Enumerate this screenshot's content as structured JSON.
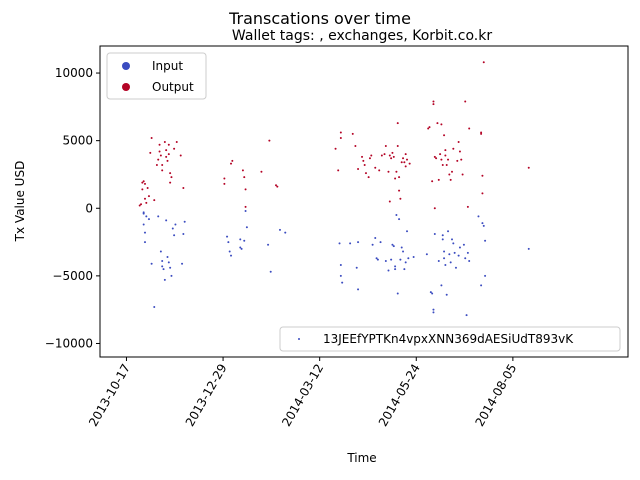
{
  "chart_data": {
    "type": "scatter",
    "title": "Transcations over time",
    "subtitle": "Wallet tags: , exchanges, Korbit.co.kr",
    "xlabel": "Time",
    "ylabel": "Tx Value USD",
    "xlim": [
      "2013-09-27",
      "2014-10-31"
    ],
    "ylim": [
      -11000,
      12000
    ],
    "x_ticks": [
      "2013-10-17",
      "2013-12-29",
      "2014-03-12",
      "2014-05-24",
      "2014-08-05"
    ],
    "y_ticks": [
      -10000,
      -5000,
      0,
      5000,
      10000
    ],
    "grid": false,
    "legend_top": {
      "placement": "upper-left",
      "entries": [
        "Input",
        "Output"
      ]
    },
    "legend_bottom": {
      "placement": "lower-right",
      "entries": [
        "13JEEfYPTKn4vpxXNN369dAESiUdT893vK"
      ]
    },
    "colors": {
      "input": "#3b4cc0",
      "output": "#b40426"
    },
    "series": [
      {
        "name": "Input",
        "points": [
          [
            "2013-10-30",
            -400
          ],
          [
            "2013-10-30",
            -1200
          ],
          [
            "2013-10-31",
            -1800
          ],
          [
            "2013-10-31",
            -2500
          ],
          [
            "2013-10-30",
            -300
          ],
          [
            "2013-11-01",
            -600
          ],
          [
            "2013-11-03",
            -800
          ],
          [
            "2013-11-05",
            -4100
          ],
          [
            "2013-11-07",
            -7300
          ],
          [
            "2013-11-10",
            -600
          ],
          [
            "2013-11-12",
            -3200
          ],
          [
            "2013-11-13",
            -3900
          ],
          [
            "2013-11-13",
            -4300
          ],
          [
            "2013-11-14",
            -4500
          ],
          [
            "2013-11-15",
            -5300
          ],
          [
            "2013-11-16",
            -900
          ],
          [
            "2013-11-17",
            -3600
          ],
          [
            "2013-11-18",
            -4000
          ],
          [
            "2013-11-19",
            -4400
          ],
          [
            "2013-11-20",
            -5000
          ],
          [
            "2013-11-21",
            -1500
          ],
          [
            "2013-11-22",
            -2000
          ],
          [
            "2013-11-23",
            -1200
          ],
          [
            "2013-11-28",
            -4100
          ],
          [
            "2013-11-29",
            -1900
          ],
          [
            "2013-11-30",
            -1000
          ],
          [
            "2014-01-01",
            -2100
          ],
          [
            "2014-01-02",
            -2500
          ],
          [
            "2014-01-03",
            -3200
          ],
          [
            "2014-01-04",
            -3500
          ],
          [
            "2014-01-11",
            -2300
          ],
          [
            "2014-01-11",
            -2900
          ],
          [
            "2014-01-12",
            -3000
          ],
          [
            "2014-01-14",
            -2400
          ],
          [
            "2014-01-15",
            -200
          ],
          [
            "2014-01-16",
            -1400
          ],
          [
            "2014-02-01",
            -2700
          ],
          [
            "2014-02-03",
            -4700
          ],
          [
            "2014-02-10",
            -1600
          ],
          [
            "2014-02-14",
            -1800
          ],
          [
            "2014-03-27",
            -2600
          ],
          [
            "2014-03-28",
            -4200
          ],
          [
            "2014-03-28",
            -5000
          ],
          [
            "2014-03-29",
            -5500
          ],
          [
            "2014-04-04",
            -2600
          ],
          [
            "2014-04-09",
            -4400
          ],
          [
            "2014-04-10",
            -6000
          ],
          [
            "2014-04-10",
            -2500
          ],
          [
            "2014-04-21",
            -2700
          ],
          [
            "2014-04-23",
            -2200
          ],
          [
            "2014-04-24",
            -3700
          ],
          [
            "2014-04-25",
            -3800
          ],
          [
            "2014-04-27",
            -2500
          ],
          [
            "2014-05-01",
            -3900
          ],
          [
            "2014-05-03",
            -4600
          ],
          [
            "2014-05-05",
            -3800
          ],
          [
            "2014-05-06",
            -2700
          ],
          [
            "2014-05-07",
            -2800
          ],
          [
            "2014-05-08",
            -4300
          ],
          [
            "2014-05-08",
            -4500
          ],
          [
            "2014-05-09",
            -500
          ],
          [
            "2014-05-10",
            -6300
          ],
          [
            "2014-05-11",
            -800
          ],
          [
            "2014-05-12",
            -3800
          ],
          [
            "2014-05-13",
            -2900
          ],
          [
            "2014-05-14",
            -3200
          ],
          [
            "2014-05-15",
            -4500
          ],
          [
            "2014-05-16",
            -4000
          ],
          [
            "2014-05-17",
            -1700
          ],
          [
            "2014-05-18",
            -3700
          ],
          [
            "2014-05-22",
            -3600
          ],
          [
            "2014-06-01",
            -3400
          ],
          [
            "2014-06-04",
            -6200
          ],
          [
            "2014-06-05",
            -6300
          ],
          [
            "2014-06-06",
            -7500
          ],
          [
            "2014-06-06",
            -7700
          ],
          [
            "2014-06-07",
            -1900
          ],
          [
            "2014-06-10",
            -3900
          ],
          [
            "2014-06-12",
            -5700
          ],
          [
            "2014-06-13",
            -2000
          ],
          [
            "2014-06-13",
            -2300
          ],
          [
            "2014-06-14",
            -3200
          ],
          [
            "2014-06-14",
            -3700
          ],
          [
            "2014-06-15",
            -4200
          ],
          [
            "2014-06-16",
            -6400
          ],
          [
            "2014-06-17",
            -1700
          ],
          [
            "2014-06-18",
            -3400
          ],
          [
            "2014-06-19",
            -4000
          ],
          [
            "2014-06-20",
            -2300
          ],
          [
            "2014-06-21",
            -2600
          ],
          [
            "2014-06-22",
            -3300
          ],
          [
            "2014-06-23",
            -4400
          ],
          [
            "2014-06-25",
            -3500
          ],
          [
            "2014-06-26",
            -2900
          ],
          [
            "2014-06-29",
            -2700
          ],
          [
            "2014-06-30",
            -3700
          ],
          [
            "2014-07-01",
            -7900
          ],
          [
            "2014-07-02",
            -3300
          ],
          [
            "2014-07-03",
            -3900
          ],
          [
            "2014-07-10",
            -600
          ],
          [
            "2014-07-12",
            -5700
          ],
          [
            "2014-07-13",
            -1100
          ],
          [
            "2014-07-14",
            -1300
          ],
          [
            "2014-07-15",
            -5000
          ],
          [
            "2014-07-15",
            -2400
          ],
          [
            "2014-08-17",
            -3000
          ]
        ]
      },
      {
        "name": "Output",
        "points": [
          [
            "2013-10-27",
            200
          ],
          [
            "2013-10-28",
            300
          ],
          [
            "2013-10-29",
            1900
          ],
          [
            "2013-10-29",
            1400
          ],
          [
            "2013-10-30",
            2000
          ],
          [
            "2013-10-31",
            1800
          ],
          [
            "2013-10-31",
            700
          ],
          [
            "2013-11-01",
            400
          ],
          [
            "2013-11-02",
            1500
          ],
          [
            "2013-11-03",
            900
          ],
          [
            "2013-11-04",
            4100
          ],
          [
            "2013-11-05",
            5200
          ],
          [
            "2013-11-07",
            600
          ],
          [
            "2013-11-09",
            3200
          ],
          [
            "2013-11-10",
            3600
          ],
          [
            "2013-11-11",
            4200
          ],
          [
            "2013-11-11",
            4700
          ],
          [
            "2013-11-12",
            3900
          ],
          [
            "2013-11-13",
            2800
          ],
          [
            "2013-11-13",
            3200
          ],
          [
            "2013-11-15",
            4900
          ],
          [
            "2013-11-16",
            3800
          ],
          [
            "2013-11-16",
            4300
          ],
          [
            "2013-11-17",
            3500
          ],
          [
            "2013-11-18",
            4700
          ],
          [
            "2013-11-18",
            4000
          ],
          [
            "2013-11-19",
            2600
          ],
          [
            "2013-11-19",
            1900
          ],
          [
            "2013-11-20",
            2300
          ],
          [
            "2013-11-24",
            4900
          ],
          [
            "2013-11-27",
            3900
          ],
          [
            "2013-11-29",
            1500
          ],
          [
            "2013-12-30",
            1800
          ],
          [
            "2013-12-30",
            2200
          ],
          [
            "2014-01-04",
            3300
          ],
          [
            "2014-01-05",
            3500
          ],
          [
            "2014-01-13",
            2800
          ],
          [
            "2014-01-14",
            2300
          ],
          [
            "2014-01-15",
            1400
          ],
          [
            "2014-01-15",
            100
          ],
          [
            "2014-01-27",
            2700
          ],
          [
            "2014-02-02",
            5000
          ],
          [
            "2014-02-07",
            1700
          ],
          [
            "2014-02-08",
            1600
          ],
          [
            "2014-03-24",
            4400
          ],
          [
            "2014-03-26",
            2800
          ],
          [
            "2014-03-28",
            5600
          ],
          [
            "2014-03-28",
            5200
          ],
          [
            "2014-04-06",
            5500
          ],
          [
            "2014-04-08",
            4600
          ],
          [
            "2014-04-10",
            2900
          ],
          [
            "2014-04-13",
            3800
          ],
          [
            "2014-04-14",
            3500
          ],
          [
            "2014-04-15",
            3200
          ],
          [
            "2014-04-16",
            2600
          ],
          [
            "2014-04-18",
            2300
          ],
          [
            "2014-04-19",
            3700
          ],
          [
            "2014-04-20",
            3900
          ],
          [
            "2014-04-23",
            3000
          ],
          [
            "2014-04-26",
            2800
          ],
          [
            "2014-04-28",
            3900
          ],
          [
            "2014-04-30",
            4000
          ],
          [
            "2014-05-01",
            4600
          ],
          [
            "2014-05-03",
            2700
          ],
          [
            "2014-05-04",
            500
          ],
          [
            "2014-05-04",
            3900
          ],
          [
            "2014-05-05",
            3700
          ],
          [
            "2014-05-06",
            4100
          ],
          [
            "2014-05-07",
            3800
          ],
          [
            "2014-05-08",
            2200
          ],
          [
            "2014-05-09",
            2700
          ],
          [
            "2014-05-10",
            6300
          ],
          [
            "2014-05-10",
            4600
          ],
          [
            "2014-05-11",
            1300
          ],
          [
            "2014-05-11",
            2300
          ],
          [
            "2014-05-12",
            700
          ],
          [
            "2014-05-13",
            3400
          ],
          [
            "2014-05-14",
            3700
          ],
          [
            "2014-05-15",
            3400
          ],
          [
            "2014-05-16",
            3100
          ],
          [
            "2014-05-16",
            4000
          ],
          [
            "2014-05-17",
            3600
          ],
          [
            "2014-05-19",
            3300
          ],
          [
            "2014-06-02",
            5900
          ],
          [
            "2014-06-03",
            6000
          ],
          [
            "2014-06-05",
            2000
          ],
          [
            "2014-06-06",
            7700
          ],
          [
            "2014-06-06",
            7900
          ],
          [
            "2014-06-07",
            3800
          ],
          [
            "2014-06-07",
            0
          ],
          [
            "2014-06-08",
            3700
          ],
          [
            "2014-06-09",
            6300
          ],
          [
            "2014-06-10",
            2100
          ],
          [
            "2014-06-11",
            4000
          ],
          [
            "2014-06-12",
            3600
          ],
          [
            "2014-06-12",
            6200
          ],
          [
            "2014-06-13",
            3200
          ],
          [
            "2014-06-14",
            5400
          ],
          [
            "2014-06-15",
            3900
          ],
          [
            "2014-06-15",
            4300
          ],
          [
            "2014-06-16",
            3200
          ],
          [
            "2014-06-17",
            3600
          ],
          [
            "2014-06-18",
            2500
          ],
          [
            "2014-06-19",
            2100
          ],
          [
            "2014-06-20",
            2700
          ],
          [
            "2014-06-21",
            4400
          ],
          [
            "2014-06-24",
            3500
          ],
          [
            "2014-06-25",
            4900
          ],
          [
            "2014-06-26",
            4200
          ],
          [
            "2014-06-27",
            3600
          ],
          [
            "2014-06-28",
            2500
          ],
          [
            "2014-06-30",
            7900
          ],
          [
            "2014-07-02",
            100
          ],
          [
            "2014-07-03",
            5900
          ],
          [
            "2014-07-12",
            5600
          ],
          [
            "2014-07-12",
            5500
          ],
          [
            "2014-07-13",
            2400
          ],
          [
            "2014-07-13",
            1100
          ],
          [
            "2014-07-14",
            10800
          ],
          [
            "2014-08-17",
            3000
          ],
          [
            "2013-11-22",
            4400
          ]
        ]
      }
    ]
  }
}
